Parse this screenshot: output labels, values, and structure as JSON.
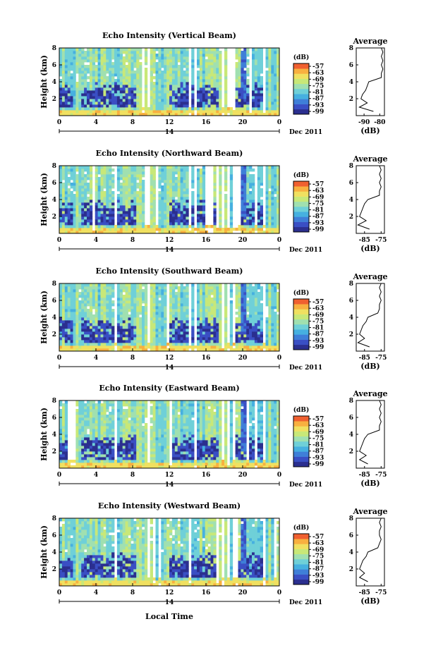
{
  "figure": {
    "x_label": "Local Time",
    "date_label": "Dec 2011",
    "day_label": "14"
  },
  "colorbar": {
    "unit": "(dB)",
    "ticks": [
      "-57",
      "-63",
      "-69",
      "-75",
      "-81",
      "-87",
      "-93",
      "-99"
    ],
    "range": [
      -99,
      -51
    ],
    "colors": [
      "#2b2f8f",
      "#3a4fc4",
      "#3f7fd8",
      "#46b0e0",
      "#6fd0d8",
      "#a0e0b0",
      "#c8e878",
      "#f0e060",
      "#f8b040",
      "#f06030"
    ]
  },
  "chart_data": [
    {
      "type": "heatmap",
      "title": "Echo Intensity (Vertical Beam)",
      "ylabel": "Height (km)",
      "xlabel": "Local Time",
      "x_ticks": [
        "0",
        "4",
        "8",
        "12",
        "16",
        "20",
        "0"
      ],
      "y_ticks": [
        "2",
        "4",
        "6",
        "8"
      ],
      "ylim": [
        0,
        8
      ],
      "xlim": [
        0,
        24
      ],
      "z_unit": "dB",
      "zlim": [
        -99,
        -51
      ],
      "dense_echo_layer_km": [
        1.0,
        4.0
      ],
      "profile": {
        "title": "Average",
        "xlabel": "(dB)",
        "x_ticks": [
          "-90",
          "-80"
        ],
        "xlim": [
          -95,
          -77
        ],
        "y_ticks": [
          "2",
          "4",
          "6",
          "8"
        ],
        "height_km": [
          0.5,
          1.0,
          1.5,
          2.0,
          2.5,
          3.0,
          3.5,
          4.0,
          4.5,
          5.0,
          5.5,
          6.0,
          6.5,
          7.0,
          7.5,
          8.0
        ],
        "value_db": [
          -84,
          -93,
          -88,
          -92,
          -91,
          -89,
          -88,
          -87,
          -79,
          -79,
          -78,
          -79,
          -78,
          -79,
          -78,
          -79
        ]
      }
    },
    {
      "type": "heatmap",
      "title": "Echo Intensity (Northward Beam)",
      "ylabel": "Height (km)",
      "xlabel": "Local Time",
      "x_ticks": [
        "0",
        "4",
        "8",
        "12",
        "16",
        "20",
        "0"
      ],
      "y_ticks": [
        "2",
        "4",
        "6",
        "8"
      ],
      "ylim": [
        0,
        8
      ],
      "xlim": [
        0,
        24
      ],
      "z_unit": "dB",
      "zlim": [
        -99,
        -51
      ],
      "dense_echo_layer_km": [
        1.0,
        4.0
      ],
      "profile": {
        "title": "Average",
        "xlabel": "(dB)",
        "x_ticks": [
          "-85",
          "-75"
        ],
        "xlim": [
          -90,
          -73
        ],
        "y_ticks": [
          "2",
          "4",
          "6",
          "8"
        ],
        "height_km": [
          0.5,
          1.0,
          1.5,
          2.0,
          2.5,
          3.0,
          3.5,
          4.0,
          4.5,
          5.0,
          5.5,
          6.0,
          6.5,
          7.0,
          7.5,
          8.0
        ],
        "value_db": [
          -82,
          -89,
          -84,
          -88,
          -87,
          -86,
          -85,
          -83,
          -76,
          -76,
          -75,
          -76,
          -75,
          -76,
          -75,
          -76
        ]
      }
    },
    {
      "type": "heatmap",
      "title": "Echo Intensity (Southward Beam)",
      "ylabel": "Height (km)",
      "xlabel": "Local Time",
      "x_ticks": [
        "0",
        "4",
        "8",
        "12",
        "16",
        "20",
        "0"
      ],
      "y_ticks": [
        "2",
        "4",
        "6",
        "8"
      ],
      "ylim": [
        0,
        8
      ],
      "xlim": [
        0,
        24
      ],
      "z_unit": "dB",
      "zlim": [
        -99,
        -51
      ],
      "dense_echo_layer_km": [
        1.0,
        4.0
      ],
      "profile": {
        "title": "Average",
        "xlabel": "(dB)",
        "x_ticks": [
          "-85",
          "-75"
        ],
        "xlim": [
          -90,
          -73
        ],
        "y_ticks": [
          "2",
          "4",
          "6",
          "8"
        ],
        "height_km": [
          0.5,
          1.0,
          1.5,
          2.0,
          2.5,
          3.0,
          3.5,
          4.0,
          4.5,
          5.0,
          5.5,
          6.0,
          6.5,
          7.0,
          7.5,
          8.0
        ],
        "value_db": [
          -82,
          -89,
          -85,
          -88,
          -87,
          -86,
          -84,
          -83,
          -77,
          -76,
          -76,
          -75,
          -76,
          -75,
          -76,
          -75
        ]
      }
    },
    {
      "type": "heatmap",
      "title": "Echo Intensity (Eastward Beam)",
      "ylabel": "Height (km)",
      "xlabel": "Local Time",
      "x_ticks": [
        "0",
        "4",
        "8",
        "12",
        "16",
        "20",
        "0"
      ],
      "y_ticks": [
        "2",
        "4",
        "6",
        "8"
      ],
      "ylim": [
        0,
        8
      ],
      "xlim": [
        0,
        24
      ],
      "z_unit": "dB",
      "zlim": [
        -99,
        -51
      ],
      "dense_echo_layer_km": [
        1.0,
        4.0
      ],
      "profile": {
        "title": "Average",
        "xlabel": "(dB)",
        "x_ticks": [
          "-85",
          "-75"
        ],
        "xlim": [
          -90,
          -73
        ],
        "y_ticks": [
          "2",
          "4",
          "6",
          "8"
        ],
        "height_km": [
          0.5,
          1.0,
          1.5,
          2.0,
          2.5,
          3.0,
          3.5,
          4.0,
          4.5,
          5.0,
          5.5,
          6.0,
          6.5,
          7.0,
          7.5,
          8.0
        ],
        "value_db": [
          -83,
          -88,
          -84,
          -88,
          -87,
          -86,
          -85,
          -83,
          -76,
          -76,
          -75,
          -76,
          -75,
          -76,
          -75,
          -76
        ]
      }
    },
    {
      "type": "heatmap",
      "title": "Echo Intensity (Westward Beam)",
      "ylabel": "Height (km)",
      "xlabel": "Local Time",
      "x_ticks": [
        "0",
        "4",
        "8",
        "12",
        "16",
        "20",
        "0"
      ],
      "y_ticks": [
        "2",
        "4",
        "6",
        "8"
      ],
      "ylim": [
        0,
        8
      ],
      "xlim": [
        0,
        24
      ],
      "z_unit": "dB",
      "zlim": [
        -99,
        -51
      ],
      "dense_echo_layer_km": [
        1.0,
        4.0
      ],
      "profile": {
        "title": "Average",
        "xlabel": "(dB)",
        "x_ticks": [
          "-85",
          "-75"
        ],
        "xlim": [
          -90,
          -73
        ],
        "y_ticks": [
          "2",
          "4",
          "6",
          "8"
        ],
        "height_km": [
          0.5,
          1.0,
          1.5,
          2.0,
          2.5,
          3.0,
          3.5,
          4.0,
          4.5,
          5.0,
          5.5,
          6.0,
          6.5,
          7.0,
          7.5,
          8.0
        ],
        "value_db": [
          -83,
          -88,
          -85,
          -88,
          -87,
          -86,
          -84,
          -83,
          -77,
          -76,
          -75,
          -76,
          -76,
          -75,
          -76,
          -75
        ]
      }
    }
  ]
}
